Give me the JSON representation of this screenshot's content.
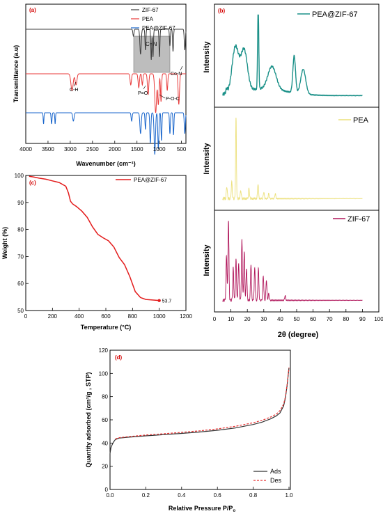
{
  "chart_data": [
    {
      "panel": "(a)",
      "type": "line",
      "xlabel": "Wavenumber (cm⁻¹)",
      "ylabel": "Transmittance (a.u)",
      "xlim": [
        4000,
        400
      ],
      "x_ticks": [
        "4000",
        "3500",
        "3000",
        "2500",
        "2000",
        "1500",
        "1000",
        "500"
      ],
      "legend": [
        "ZIF-67",
        "PEA",
        "PEA@ZIF-67"
      ],
      "colors": [
        "#3c3c3c",
        "#e83a3a",
        "#1a66cc"
      ],
      "annotations": {
        "box": "C=N",
        "ch": "C-H",
        "po": "P=O",
        "poc": "P-O-C",
        "con": "Co-N"
      },
      "series": [
        {
          "name": "ZIF-67",
          "baseline": 0.82,
          "peaks": [
            [
              1580,
              0.05,
              12
            ],
            [
              1420,
              0.18,
              15
            ],
            [
              1310,
              0.15,
              10
            ],
            [
              1180,
              0.22,
              10
            ],
            [
              1140,
              0.2,
              10
            ],
            [
              995,
              0.2,
              10
            ],
            [
              760,
              0.12,
              10
            ],
            [
              690,
              0.16,
              10
            ],
            [
              425,
              0.15,
              12
            ]
          ]
        },
        {
          "name": "PEA",
          "baseline": 0.5,
          "peaks": [
            [
              2960,
              0.12,
              25
            ],
            [
              2870,
              0.08,
              20
            ],
            [
              1640,
              0.08,
              15
            ],
            [
              1460,
              0.1,
              15
            ],
            [
              1380,
              0.08,
              12
            ],
            [
              1250,
              0.15,
              15
            ],
            [
              1080,
              0.28,
              20
            ],
            [
              1020,
              0.22,
              15
            ],
            [
              960,
              0.2,
              12
            ],
            [
              820,
              0.12,
              12
            ],
            [
              560,
              0.22,
              15
            ]
          ]
        },
        {
          "name": "PEA@ZIF-67",
          "baseline": 0.22,
          "peaks": [
            [
              3600,
              0.08,
              8
            ],
            [
              3420,
              0.08,
              10
            ],
            [
              3340,
              0.08,
              8
            ],
            [
              2930,
              0.06,
              15
            ],
            [
              1620,
              0.06,
              12
            ],
            [
              1420,
              0.15,
              15
            ],
            [
              1310,
              0.12,
              10
            ],
            [
              1200,
              0.22,
              12
            ],
            [
              1100,
              0.3,
              15
            ],
            [
              1020,
              0.26,
              12
            ],
            [
              950,
              0.2,
              10
            ],
            [
              760,
              0.15,
              10
            ],
            [
              680,
              0.16,
              10
            ],
            [
              425,
              0.15,
              12
            ]
          ]
        }
      ]
    },
    {
      "panel": "(b)",
      "type": "line",
      "xlabel": "2θ (degree)",
      "x_ticks": [
        "0",
        "10",
        "20",
        "30",
        "40",
        "50",
        "60",
        "70",
        "80",
        "90",
        "100"
      ],
      "xlim": [
        0,
        100
      ],
      "sub": [
        {
          "name": "PEA@ZIF-67",
          "ylabel": "Intensity",
          "color": "#1a9088",
          "peaks": [
            [
              7.4,
              0.05,
              0.5
            ],
            [
              12.7,
              0.55,
              2.0
            ],
            [
              18,
              0.5,
              2.0
            ],
            [
              26.6,
              1.0,
              0.35
            ],
            [
              35,
              0.28,
              2.5
            ],
            [
              48.5,
              0.45,
              0.8
            ],
            [
              54,
              0.3,
              1.5
            ]
          ]
        },
        {
          "name": "PEA",
          "ylabel": "Intensity",
          "color": "#ece07a",
          "peaks": [
            [
              7.5,
              0.15,
              0.3
            ],
            [
              10.5,
              0.2,
              0.3
            ],
            [
              13.1,
              1.0,
              0.25
            ],
            [
              16,
              0.1,
              0.3
            ],
            [
              21,
              0.12,
              0.3
            ],
            [
              26.5,
              0.18,
              0.3
            ],
            [
              30,
              0.08,
              0.3
            ],
            [
              33,
              0.06,
              0.3
            ],
            [
              37,
              0.06,
              0.3
            ]
          ]
        },
        {
          "name": "ZIF-67",
          "ylabel": "Intensity",
          "color": "#b0155a",
          "peaks": [
            [
              7.3,
              0.55,
              0.3
            ],
            [
              8.5,
              1.0,
              0.3
            ],
            [
              11.4,
              0.4,
              0.3
            ],
            [
              13.1,
              0.5,
              0.3
            ],
            [
              14.7,
              0.45,
              0.3
            ],
            [
              16.7,
              0.75,
              0.3
            ],
            [
              18.1,
              0.6,
              0.3
            ],
            [
              19.5,
              0.4,
              0.3
            ],
            [
              22.2,
              0.45,
              0.3
            ],
            [
              24.5,
              0.4,
              0.3
            ],
            [
              26.7,
              0.4,
              0.3
            ],
            [
              29.7,
              0.3,
              0.3
            ],
            [
              31.6,
              0.25,
              0.3
            ],
            [
              33,
              0.08,
              0.3
            ],
            [
              43,
              0.06,
              0.3
            ]
          ]
        }
      ]
    },
    {
      "panel": "(c)",
      "type": "line",
      "xlabel": "Temperature (°C)",
      "ylabel": "Weight (%)",
      "xlim": [
        0,
        1200
      ],
      "ylim": [
        50,
        100
      ],
      "x_ticks": [
        "0",
        "200",
        "400",
        "600",
        "800",
        "1000",
        "1200"
      ],
      "y_ticks": [
        "50",
        "60",
        "70",
        "80",
        "90",
        "100"
      ],
      "legend": "PEA@ZIF-67",
      "color": "#e31b1b",
      "end_label": "53.7",
      "series": [
        {
          "name": "PEA@ZIF-67",
          "x": [
            25,
            60,
            100,
            150,
            200,
            250,
            300,
            320,
            335,
            350,
            380,
            420,
            460,
            500,
            540,
            580,
            620,
            660,
            700,
            740,
            780,
            820,
            860,
            900,
            950,
            1000
          ],
          "y": [
            99.7,
            99.4,
            99.0,
            98.6,
            98.0,
            97.4,
            96.0,
            93.5,
            90.5,
            89.5,
            88.5,
            86.8,
            84.5,
            81.0,
            78.2,
            76.9,
            75.8,
            73.5,
            69.6,
            67.0,
            62.5,
            57.0,
            54.8,
            54.1,
            53.9,
            53.7
          ]
        }
      ]
    },
    {
      "panel": "(d)",
      "type": "line",
      "xlabel": "Relative Pressure P/P",
      "xlabel_sub": "o",
      "ylabel": "Quantity adsorbed (cm³/g , STP)",
      "xlim": [
        0.0,
        1.0
      ],
      "ylim": [
        0,
        120
      ],
      "x_ticks": [
        "0.0",
        "0.2",
        "0.4",
        "0.6",
        "0.8",
        "1.0"
      ],
      "y_ticks": [
        "0",
        "20",
        "40",
        "60",
        "80",
        "100",
        "120"
      ],
      "series": [
        {
          "name": "Ads",
          "color": "#333333",
          "x": [
            0.0,
            0.005,
            0.01,
            0.02,
            0.03,
            0.05,
            0.1,
            0.2,
            0.3,
            0.4,
            0.5,
            0.6,
            0.7,
            0.8,
            0.85,
            0.9,
            0.93,
            0.95,
            0.97,
            0.98,
            0.99,
            1.0
          ],
          "y": [
            31,
            36,
            38,
            41,
            43,
            44.2,
            45,
            46.2,
            47.2,
            48.3,
            49.5,
            51,
            53,
            56,
            58,
            61,
            63.5,
            66,
            72,
            79,
            90,
            105
          ]
        },
        {
          "name": "Des",
          "color": "#e83030",
          "x": [
            0.03,
            0.05,
            0.1,
            0.2,
            0.3,
            0.4,
            0.5,
            0.6,
            0.7,
            0.8,
            0.85,
            0.9,
            0.93,
            0.95,
            0.97,
            0.98,
            0.99,
            1.0
          ],
          "y": [
            43.5,
            44.6,
            45.5,
            46.9,
            48,
            49.2,
            50.5,
            52.2,
            54.4,
            57.5,
            59.6,
            62.6,
            65,
            68,
            73.5,
            80,
            91,
            105
          ]
        }
      ]
    }
  ]
}
